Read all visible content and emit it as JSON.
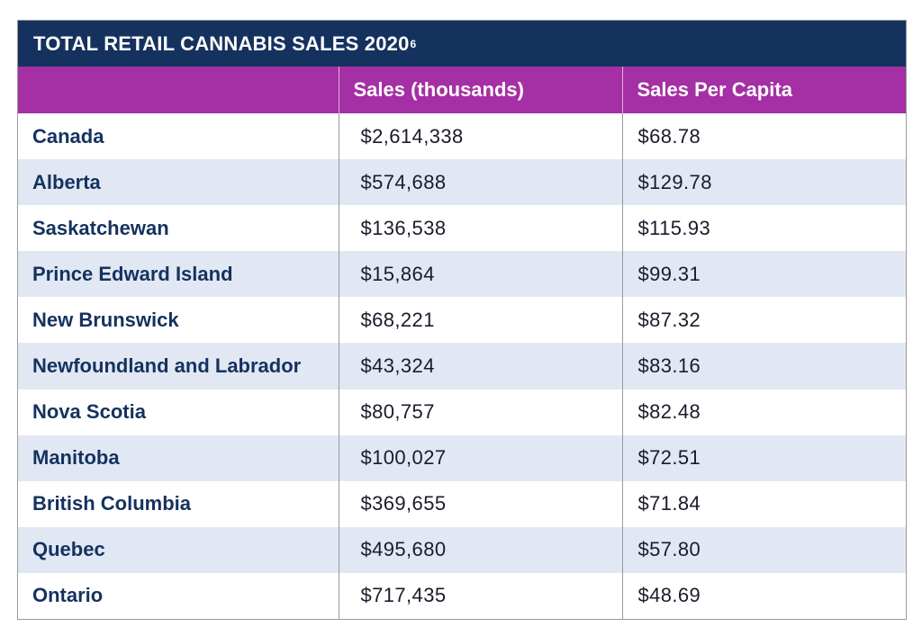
{
  "title": {
    "text": "TOTAL RETAIL CANNABIS SALES 2020",
    "footnote": "6"
  },
  "colors": {
    "title_bg": "#15325e",
    "header_bg": "#a52fa4",
    "row_alt_bg": "#e1e8f4",
    "region_text": "#15325e"
  },
  "chart_data": {
    "type": "table",
    "title": "TOTAL RETAIL CANNABIS SALES 2020",
    "columns": [
      "",
      "Sales (thousands)",
      "Sales Per Capita"
    ],
    "rows": [
      {
        "region": "Canada",
        "sales": "$2,614,338",
        "per_capita": "$68.78"
      },
      {
        "region": "Alberta",
        "sales": "$574,688",
        "per_capita": "$129.78"
      },
      {
        "region": "Saskatchewan",
        "sales": "$136,538",
        "per_capita": "$115.93"
      },
      {
        "region": "Prince Edward Island",
        "sales": "$15,864",
        "per_capita": "$99.31"
      },
      {
        "region": "New Brunswick",
        "sales": "$68,221",
        "per_capita": "$87.32"
      },
      {
        "region": "Newfoundland and Labrador",
        "sales": "$43,324",
        "per_capita": "$83.16"
      },
      {
        "region": "Nova Scotia",
        "sales": "$80,757",
        "per_capita": "$82.48"
      },
      {
        "region": "Manitoba",
        "sales": "$100,027",
        "per_capita": "$72.51"
      },
      {
        "region": "British Columbia",
        "sales": "$369,655",
        "per_capita": "$71.84"
      },
      {
        "region": "Quebec",
        "sales": "$495,680",
        "per_capita": "$57.80"
      },
      {
        "region": "Ontario",
        "sales": "$717,435",
        "per_capita": "$48.69"
      }
    ]
  }
}
